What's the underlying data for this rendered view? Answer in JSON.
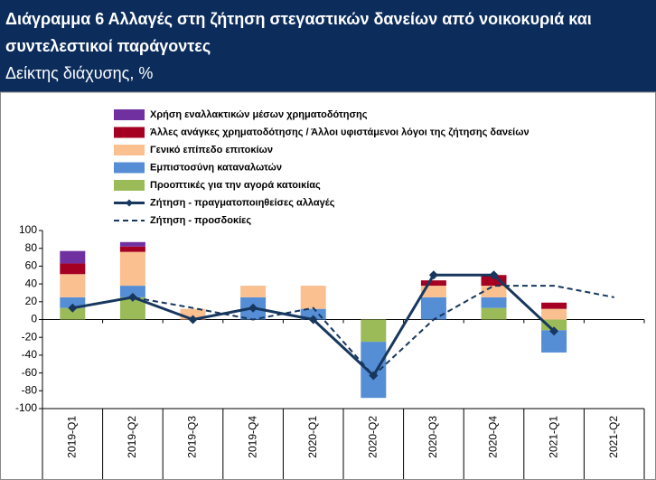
{
  "chart_data": {
    "type": "bar",
    "title": [
      "Διάγραμμα 6 Αλλαγές στη ζήτηση στεγαστικών δανείων από νοικοκυριά και",
      "συντελεστικοί παράγοντες"
    ],
    "subtitle": "Δείκτης διάχυσης, %",
    "categories": [
      "2019-Q1",
      "2019-Q2",
      "2019-Q3",
      "2019-Q4",
      "2020-Q1",
      "2020-Q2",
      "2020-Q3",
      "2020-Q4",
      "2021-Q1",
      "2021-Q2"
    ],
    "series": [
      {
        "name": "Προοπτικές για την αγορά κατοικίας",
        "color": "#9bbb59",
        "values": [
          13,
          25,
          0,
          0,
          0,
          -25,
          0,
          13,
          -12,
          0
        ]
      },
      {
        "name": "Εμπιστοσύνη καταναλωτών",
        "color": "#558ed5",
        "values": [
          12,
          13,
          0,
          25,
          12,
          -63,
          25,
          12,
          -25,
          0
        ]
      },
      {
        "name": "Γενικό επίπεδο επιτοκίων",
        "color": "#fac090",
        "values": [
          26,
          38,
          12,
          13,
          26,
          0,
          13,
          13,
          12,
          0
        ]
      },
      {
        "name": "Άλλες ανάγκες χρηματοδότησης / Άλλοι υφιστάμενοι λόγοι της ζήτησης δανείων",
        "color": "#a50021",
        "values": [
          12,
          6,
          0,
          0,
          0,
          0,
          6,
          12,
          7,
          0
        ]
      },
      {
        "name": "Χρήση εναλλακτικών μέσων χρηματοδότησης",
        "color": "#7030a0",
        "values": [
          14,
          5,
          0,
          0,
          0,
          0,
          0,
          0,
          0,
          0
        ]
      }
    ],
    "lines": [
      {
        "name": "Ζήτηση - πραγματοποιηθείσες αλλαγές",
        "color": "#17375e",
        "style": "solid",
        "values": [
          13,
          25,
          0,
          13,
          0,
          -63,
          50,
          50,
          -13,
          null
        ]
      },
      {
        "name": "Ζήτηση - προσδοκίες",
        "color": "#17375e",
        "style": "dashed",
        "values": [
          13,
          25,
          13,
          0,
          13,
          -63,
          0,
          38,
          38,
          25
        ]
      }
    ],
    "ylim": [
      -100,
      100
    ],
    "yticks": [
      -100,
      -80,
      -60,
      -40,
      -20,
      0,
      20,
      40,
      60,
      80,
      100
    ],
    "grid": false,
    "legend": "top-left"
  }
}
